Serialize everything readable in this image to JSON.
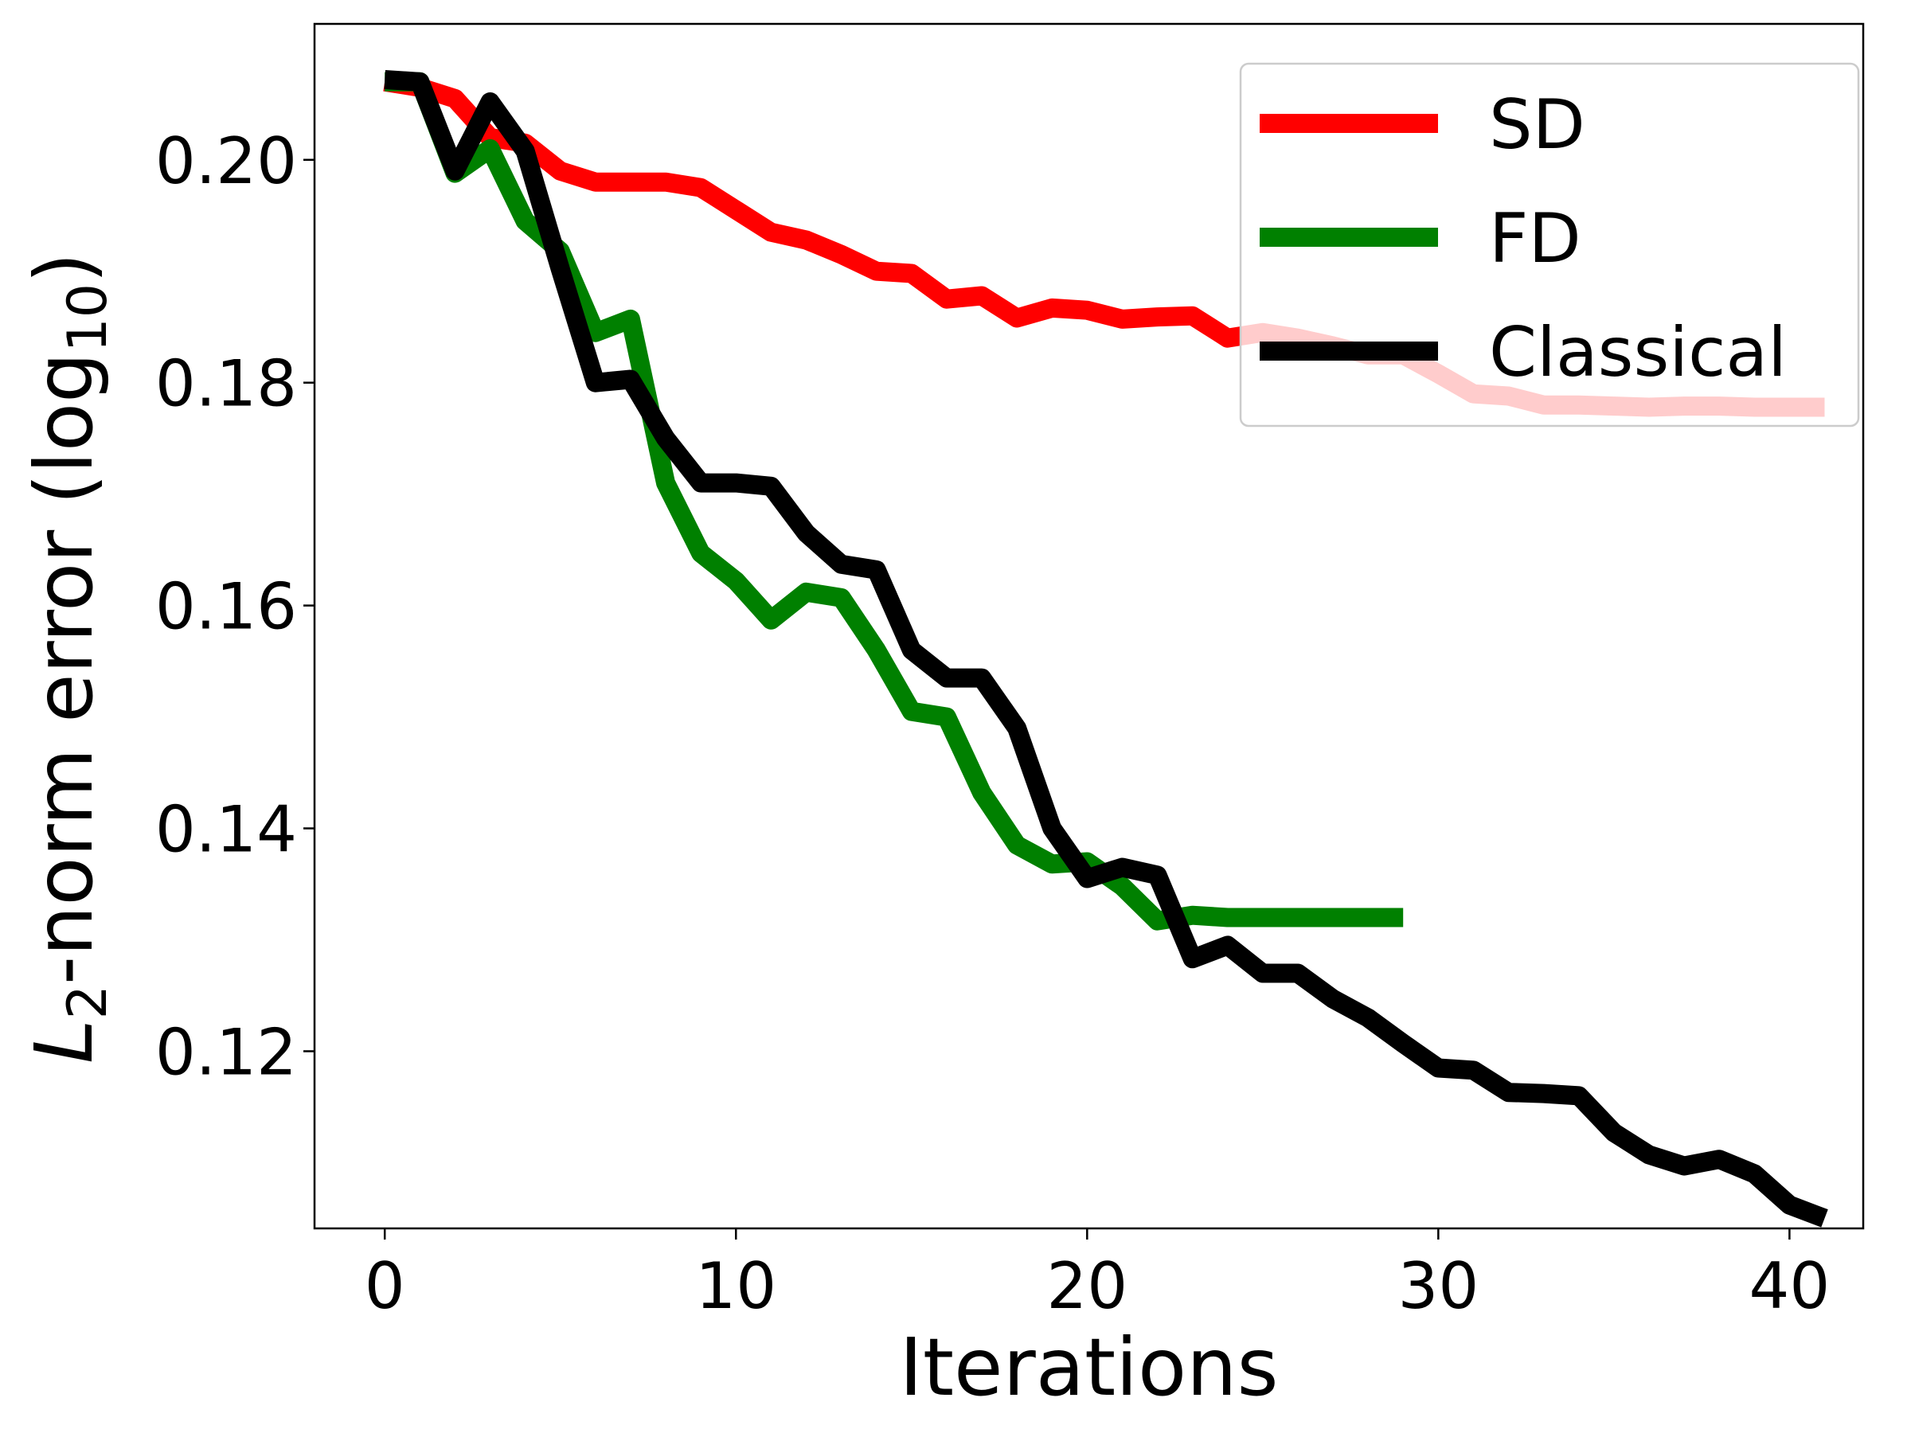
{
  "chart_data": {
    "type": "line",
    "xlabel": "Iterations",
    "ylabel": {
      "prefix": "L",
      "prefix_sub": "2",
      "main": "-norm error (log",
      "main_sub": "10",
      "suffix": ")"
    },
    "xlim": [
      -2,
      42.1
    ],
    "ylim": [
      0.1041,
      0.2122
    ],
    "xticks": [
      0,
      10,
      20,
      30,
      40
    ],
    "xtick_labels": [
      "0",
      "10",
      "20",
      "30",
      "40"
    ],
    "yticks": [
      0.12,
      0.14,
      0.16,
      0.18,
      0.2
    ],
    "ytick_labels": [
      "0.12",
      "0.14",
      "0.16",
      "0.18",
      "0.20"
    ],
    "grid": false,
    "legend": {
      "position": "top-right"
    },
    "series": [
      {
        "name": "SD",
        "color": "#ff0000",
        "x": [
          0,
          1,
          2,
          3,
          4,
          5,
          6,
          7,
          8,
          9,
          10,
          11,
          12,
          13,
          14,
          15,
          16,
          17,
          18,
          19,
          20,
          21,
          22,
          23,
          24,
          25,
          26,
          27,
          28,
          29,
          30,
          31,
          32,
          33,
          34,
          35,
          36,
          37,
          38,
          39,
          40,
          41
        ],
        "y": [
          0.207,
          0.2065,
          0.2055,
          0.202,
          0.2015,
          0.199,
          0.198,
          0.198,
          0.198,
          0.1975,
          0.1955,
          0.1935,
          0.1928,
          0.1915,
          0.19,
          0.1898,
          0.1875,
          0.1878,
          0.1858,
          0.1867,
          0.1865,
          0.1857,
          0.1859,
          0.186,
          0.184,
          0.1845,
          0.184,
          0.1833,
          0.1825,
          0.1825,
          0.1808,
          0.179,
          0.1788,
          0.178,
          0.178,
          0.1779,
          0.1778,
          0.1779,
          0.1779,
          0.1778,
          0.1778,
          0.1778
        ]
      },
      {
        "name": "FD",
        "color": "#008000",
        "x": [
          0,
          1,
          2,
          3,
          4,
          5,
          6,
          7,
          8,
          9,
          10,
          11,
          12,
          13,
          14,
          15,
          16,
          17,
          18,
          19,
          20,
          21,
          22,
          23,
          24,
          25,
          26,
          27,
          28,
          29
        ],
        "y": [
          0.207,
          0.207,
          0.1988,
          0.201,
          0.1945,
          0.1918,
          0.1845,
          0.1857,
          0.171,
          0.1647,
          0.1622,
          0.1587,
          0.1612,
          0.1607,
          0.156,
          0.1505,
          0.15,
          0.1432,
          0.1385,
          0.1368,
          0.137,
          0.1348,
          0.1317,
          0.1322,
          0.132,
          0.132,
          0.132,
          0.132,
          0.132,
          0.132
        ]
      },
      {
        "name": "Classical",
        "color": "#000000",
        "x": [
          0,
          1,
          2,
          3,
          4,
          5,
          6,
          7,
          8,
          9,
          10,
          11,
          12,
          13,
          14,
          15,
          16,
          17,
          18,
          19,
          20,
          21,
          22,
          23,
          24,
          25,
          26,
          27,
          28,
          29,
          30,
          31,
          32,
          33,
          34,
          35,
          36,
          37,
          38,
          39,
          40,
          41
        ],
        "y": [
          0.2072,
          0.207,
          0.199,
          0.2052,
          0.2008,
          0.1902,
          0.18,
          0.1803,
          0.175,
          0.171,
          0.171,
          0.1707,
          0.1665,
          0.1637,
          0.1632,
          0.156,
          0.1535,
          0.1535,
          0.149,
          0.14,
          0.1355,
          0.1365,
          0.1358,
          0.1283,
          0.1295,
          0.127,
          0.127,
          0.1247,
          0.123,
          0.1207,
          0.1185,
          0.1183,
          0.1163,
          0.1162,
          0.116,
          0.1127,
          0.1107,
          0.1097,
          0.1103,
          0.109,
          0.1062,
          0.105
        ]
      }
    ]
  }
}
